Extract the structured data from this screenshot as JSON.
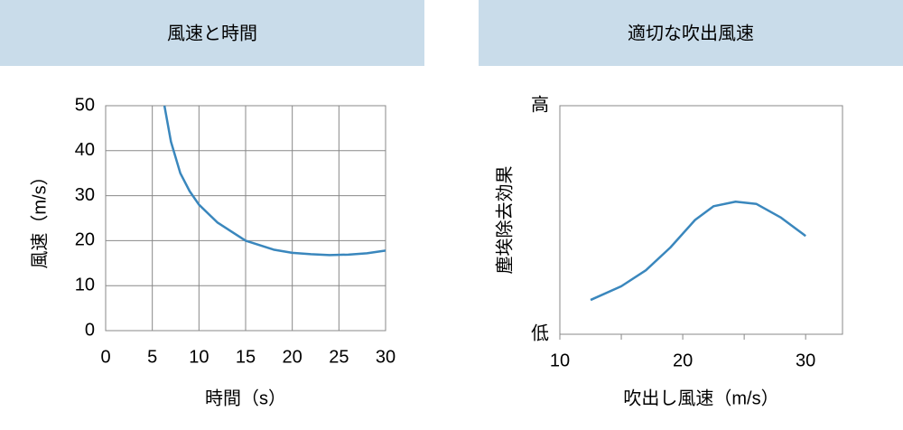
{
  "chart_data": [
    {
      "type": "line",
      "title": "風速と時間",
      "x_label": "時間（s）",
      "y_label": "風速（m/s）",
      "xlim": [
        0,
        30
      ],
      "xticks": [
        0,
        5,
        10,
        15,
        20,
        25,
        30
      ],
      "ylim": [
        0,
        50
      ],
      "yticks": [
        0,
        10,
        20,
        30,
        40,
        50
      ],
      "grid": true,
      "series": [
        {
          "color": "#3a87bd",
          "x": [
            6.3,
            7,
            8,
            9,
            10,
            12,
            15,
            18,
            20,
            22,
            24,
            26,
            28,
            30
          ],
          "values": [
            50,
            42,
            35,
            31,
            28,
            24,
            20,
            18,
            17.3,
            17,
            16.8,
            16.9,
            17.2,
            17.8
          ]
        }
      ]
    },
    {
      "type": "line",
      "title": "適切な吹出風速",
      "x_label": "吹出し風速（m/s）",
      "y_label": "塵埃除去効果",
      "xlim": [
        10,
        33
      ],
      "xticks": [
        10,
        20,
        30
      ],
      "xminor_ticks": [
        15,
        25
      ],
      "ylim": [
        0,
        1
      ],
      "yticks": [
        {
          "value": 0,
          "label": "低"
        },
        {
          "value": 1,
          "label": "高"
        }
      ],
      "grid": false,
      "series": [
        {
          "color": "#3a87bd",
          "x": [
            12.5,
            15,
            17,
            19,
            21,
            22.5,
            24.3,
            26,
            28,
            30
          ],
          "values": [
            0.15,
            0.21,
            0.28,
            0.38,
            0.5,
            0.56,
            0.58,
            0.57,
            0.51,
            0.43
          ]
        }
      ]
    }
  ]
}
